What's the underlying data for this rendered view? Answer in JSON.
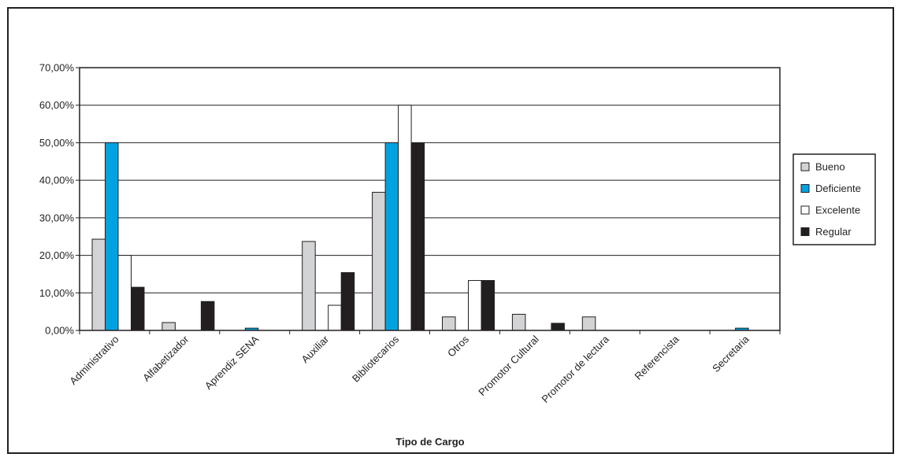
{
  "chart_data": {
    "type": "bar",
    "title": "",
    "xlabel": "Tipo de Cargo",
    "ylabel": "",
    "ylim": [
      0,
      70
    ],
    "ytick_values": [
      0,
      10,
      20,
      30,
      40,
      50,
      60,
      70
    ],
    "ytick_labels": [
      "0,00%",
      "10,00%",
      "20,00%",
      "30,00%",
      "40,00%",
      "50,00%",
      "60,00%",
      "70,00%"
    ],
    "grid": true,
    "legend_position": "right",
    "categories": [
      "Administrativo",
      "Alfabetizador",
      "Aprendiz SENA",
      "Auxiliar",
      "Bibliotecarios",
      "Otros",
      "Promotor Cultural",
      "Promotor de lectura",
      "Referencista",
      "Secretaria"
    ],
    "series": [
      {
        "name": "Bueno",
        "color": "#d1d3d4",
        "values": [
          24.3,
          2.1,
          0,
          23.7,
          36.8,
          3.6,
          4.3,
          3.6,
          0,
          0
        ]
      },
      {
        "name": "Deficiente",
        "color": "#00a3e0",
        "values": [
          50,
          0,
          0.6,
          0,
          50,
          0,
          0,
          0,
          0,
          0.6
        ]
      },
      {
        "name": "Excelente",
        "color": "#ffffff",
        "values": [
          20,
          0,
          0,
          6.7,
          60,
          13.3,
          0,
          0,
          0,
          0
        ]
      },
      {
        "name": "Regular",
        "color": "#231f20",
        "values": [
          11.5,
          7.7,
          0,
          15.4,
          50,
          13.3,
          1.9,
          0,
          0,
          0
        ]
      }
    ]
  }
}
